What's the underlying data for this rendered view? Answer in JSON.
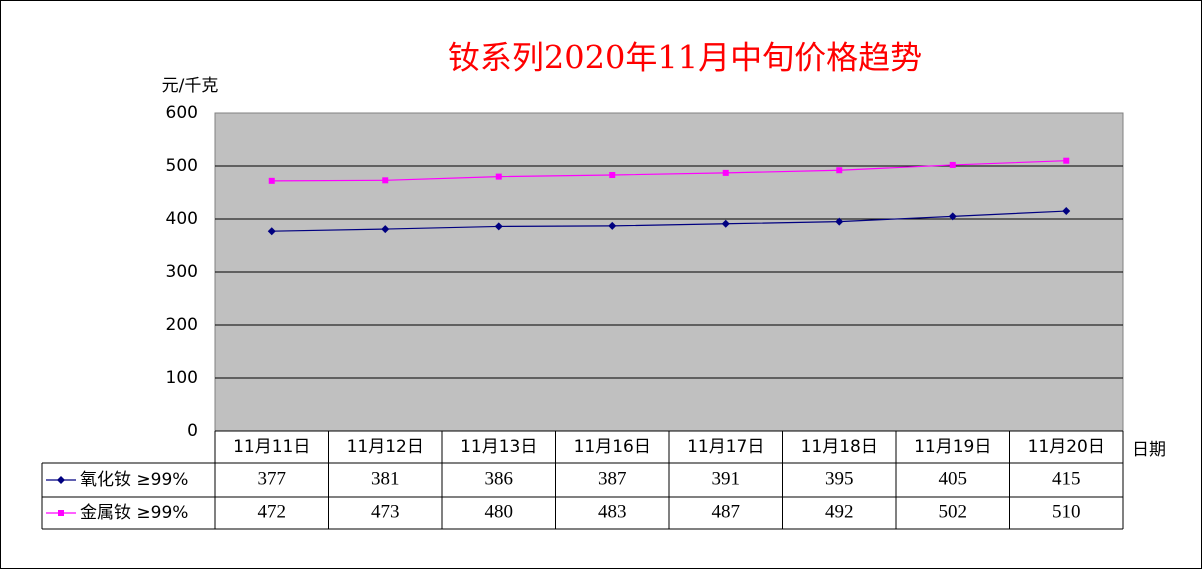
{
  "chart_data": {
    "type": "line",
    "title": "钕系列2020年11月中旬价格趋势",
    "y_label": "元/千克",
    "x_label": "日期",
    "categories": [
      "11月11日",
      "11月12日",
      "11月13日",
      "11月16日",
      "11月17日",
      "11月18日",
      "11月19日",
      "11月20日"
    ],
    "series": [
      {
        "name": "氧化钕 ≥99%",
        "color": "#000080",
        "marker": "diamond",
        "values": [
          377,
          381,
          386,
          387,
          391,
          395,
          405,
          415
        ]
      },
      {
        "name": "金属钕 ≥99%",
        "color": "#ff00ff",
        "marker": "square",
        "values": [
          472,
          473,
          480,
          483,
          487,
          492,
          502,
          510
        ]
      }
    ],
    "ylim": [
      0,
      600
    ],
    "yticks": [
      0,
      100,
      200,
      300,
      400,
      500,
      600
    ],
    "grid": true
  }
}
